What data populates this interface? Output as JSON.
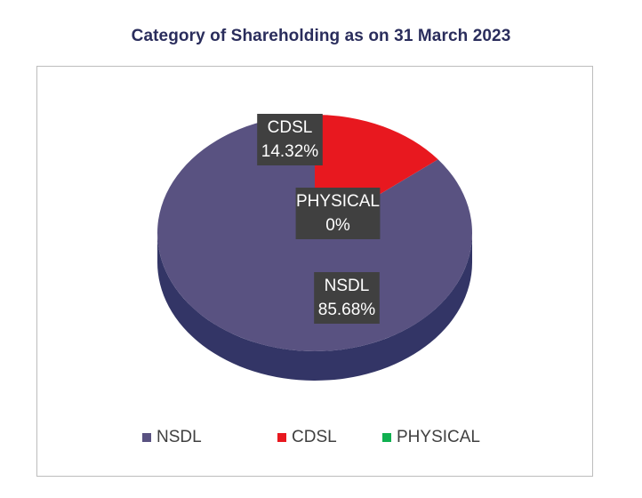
{
  "chart_data": {
    "type": "pie",
    "title": "Category of Shareholding as on 31 March 2023",
    "categories": [
      "NSDL",
      "CDSL",
      "PHYSICAL"
    ],
    "values": [
      85.68,
      14.32,
      0
    ],
    "labels": [
      "85.68%",
      "14.32%",
      "0%"
    ],
    "colors": [
      "#595281",
      "#e8181f",
      "#10b050"
    ],
    "side_colors": [
      "#333566",
      "#b0141a",
      "#0b8a3e"
    ],
    "legend": {
      "position": "bottom",
      "entries": [
        "NSDL",
        "CDSL",
        "PHYSICAL"
      ]
    },
    "style": "3d"
  }
}
